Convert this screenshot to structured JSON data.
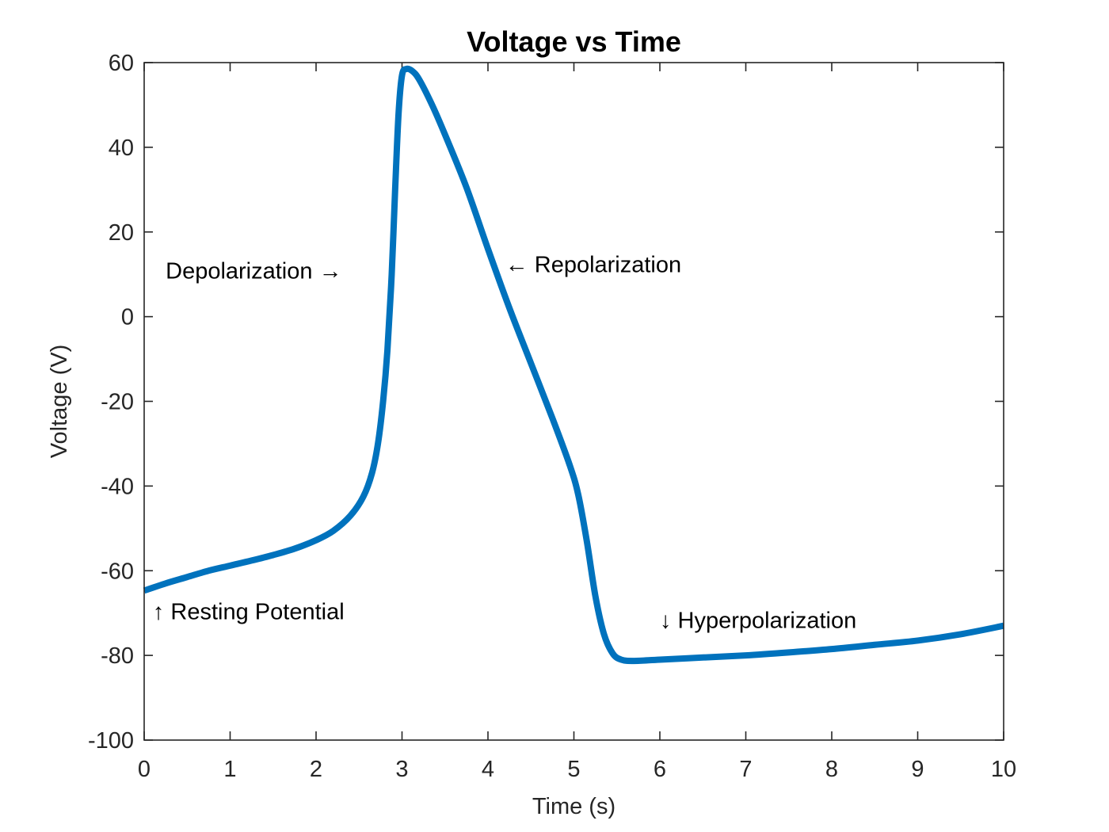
{
  "chart_data": {
    "type": "line",
    "title": "Voltage vs Time",
    "xlabel": "Time (s)",
    "ylabel": "Voltage (V)",
    "xlim": [
      0,
      10
    ],
    "ylim": [
      -100,
      60
    ],
    "xticks": [
      0,
      1,
      2,
      3,
      4,
      5,
      6,
      7,
      8,
      9,
      10
    ],
    "yticks": [
      60,
      40,
      20,
      0,
      -20,
      -40,
      -60,
      -80,
      -100
    ],
    "grid": false,
    "series": [
      {
        "color": "#0072BD",
        "x": [
          0,
          0.25,
          0.5,
          0.75,
          1.0,
          1.25,
          1.5,
          1.75,
          2.0,
          2.2,
          2.4,
          2.55,
          2.65,
          2.72,
          2.78,
          2.83,
          2.88,
          2.92,
          2.96,
          3.0,
          3.05,
          3.12,
          3.2,
          3.35,
          3.5,
          3.75,
          4.0,
          4.25,
          4.5,
          4.75,
          4.95,
          5.05,
          5.15,
          5.25,
          5.35,
          5.45,
          5.55,
          5.7,
          6.0,
          6.5,
          7.0,
          7.5,
          8.0,
          8.5,
          9.0,
          9.5,
          10.0
        ],
        "y": [
          -64.7,
          -63.0,
          -61.5,
          -60.0,
          -58.8,
          -57.6,
          -56.3,
          -54.8,
          -52.8,
          -50.6,
          -47.0,
          -42.5,
          -37.0,
          -30.0,
          -20.0,
          -8.0,
          10.0,
          30.0,
          48.0,
          57.0,
          58.5,
          58.0,
          56.0,
          50.0,
          43.0,
          30.5,
          16.0,
          2.0,
          -11.0,
          -24.0,
          -35.0,
          -42.0,
          -53.0,
          -66.0,
          -75.0,
          -79.5,
          -81.0,
          -81.3,
          -81.0,
          -80.5,
          -80.0,
          -79.3,
          -78.5,
          -77.5,
          -76.5,
          -75.0,
          -73.0
        ]
      }
    ],
    "annotations": [
      {
        "text": "↑ Resting Potential",
        "x": 0.1,
        "y": -71.5
      },
      {
        "text": "Depolarization →",
        "x": 0.25,
        "y": 9.0
      },
      {
        "text": "← Repolarization",
        "x": 4.2,
        "y": 10.5
      },
      {
        "text": "↓ Hyperpolarization",
        "x": 6.0,
        "y": -73.5
      }
    ]
  }
}
